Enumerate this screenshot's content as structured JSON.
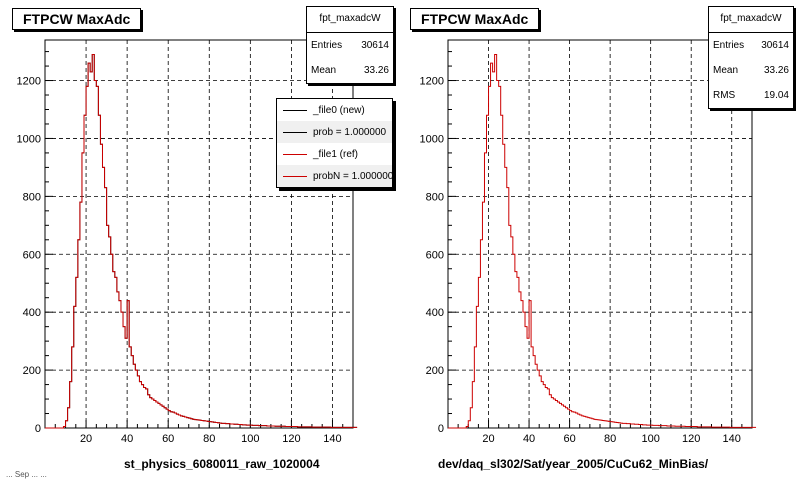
{
  "panels": [
    {
      "title": "FTPCW MaxAdc",
      "xtitle": "st_physics_6080011_raw_1020004",
      "stats": {
        "name": "fpt_maxadcW",
        "rows": [
          {
            "label": "Entries",
            "value": "30614"
          },
          {
            "label": "Mean",
            "value": "33.26"
          }
        ]
      },
      "legend": [
        {
          "label": "_file0 (new)",
          "color": "#000000"
        },
        {
          "label": "prob = 1.000000",
          "color": "#000000"
        },
        {
          "label": "_file1 (ref)",
          "color": "#cc0000"
        },
        {
          "label": "probN = 1.000000",
          "color": "#cc0000"
        }
      ]
    },
    {
      "title": "FTPCW MaxAdc",
      "xtitle": "dev/daq_sl302/Sat/year_2005/CuCu62_MinBias/",
      "stats": {
        "name": "fpt_maxadcW",
        "rows": [
          {
            "label": "Entries",
            "value": "30614"
          },
          {
            "label": "Mean",
            "value": "33.26"
          },
          {
            "label": "RMS",
            "value": "19.04"
          }
        ]
      },
      "legend": []
    }
  ],
  "footer_text": "... Sep ... ...",
  "chart_data": [
    {
      "type": "bar",
      "title": "FTPCW MaxAdc",
      "xlabel": "st_physics_6080011_raw_1020004",
      "ylabel": "",
      "xlim": [
        0,
        150
      ],
      "ylim": [
        0,
        1340
      ],
      "xticks": [
        20,
        40,
        60,
        80,
        100,
        120,
        140
      ],
      "yticks": [
        0,
        200,
        400,
        600,
        800,
        1000,
        1200
      ],
      "grid": true,
      "series": [
        {
          "name": "_file0 (new)",
          "color": "#000000"
        },
        {
          "name": "_file1 (ref)",
          "color": "#cc0000"
        }
      ],
      "bin_edges_start": 0,
      "bin_width": 1,
      "values": [
        0,
        0,
        0,
        0,
        0,
        0,
        0,
        0,
        0,
        5,
        25,
        70,
        160,
        280,
        420,
        520,
        650,
        780,
        950,
        1080,
        1180,
        1260,
        1230,
        1290,
        1200,
        1180,
        1080,
        980,
        900,
        830,
        700,
        660,
        600,
        540,
        520,
        470,
        440,
        400,
        350,
        310,
        440,
        280,
        250,
        220,
        200,
        180,
        160,
        150,
        140,
        135,
        115,
        105,
        100,
        95,
        90,
        85,
        80,
        75,
        70,
        65,
        60,
        56,
        55,
        52,
        48,
        45,
        42,
        40,
        38,
        36,
        34,
        32,
        30,
        29,
        28,
        27,
        26,
        25,
        24,
        23,
        22,
        21,
        20,
        19,
        18,
        17,
        16,
        16,
        15,
        15,
        14,
        14,
        13,
        13,
        12,
        12,
        11,
        11,
        10,
        10,
        10,
        9,
        9,
        9,
        8,
        8,
        8,
        8,
        7,
        7,
        7,
        7,
        6,
        6,
        6,
        6,
        6,
        5,
        5,
        5,
        5,
        5,
        5,
        4,
        4,
        4,
        4,
        4,
        4,
        4,
        3,
        3,
        3,
        3,
        3,
        3,
        3,
        3,
        3,
        2,
        2,
        2,
        2,
        2,
        2,
        2,
        2,
        2,
        2,
        2,
        2,
        2
      ]
    },
    {
      "type": "bar",
      "title": "FTPCW MaxAdc",
      "xlabel": "dev/daq_sl302/Sat/year_2005/CuCu62_MinBias/",
      "ylabel": "",
      "xlim": [
        0,
        150
      ],
      "ylim": [
        0,
        1340
      ],
      "xticks": [
        20,
        40,
        60,
        80,
        100,
        120,
        140
      ],
      "yticks": [
        0,
        200,
        400,
        600,
        800,
        1000,
        1200
      ],
      "grid": true,
      "series": [
        {
          "name": "fpt_maxadcW",
          "color": "#cc0000"
        }
      ],
      "bin_edges_start": 0,
      "bin_width": 1,
      "values": [
        0,
        0,
        0,
        0,
        0,
        0,
        0,
        0,
        0,
        5,
        25,
        70,
        160,
        280,
        420,
        520,
        650,
        780,
        950,
        1080,
        1180,
        1260,
        1230,
        1290,
        1200,
        1180,
        1080,
        980,
        900,
        830,
        700,
        660,
        600,
        540,
        520,
        470,
        440,
        400,
        350,
        310,
        440,
        280,
        250,
        220,
        200,
        180,
        160,
        150,
        140,
        135,
        115,
        105,
        100,
        95,
        90,
        85,
        80,
        75,
        70,
        65,
        60,
        56,
        55,
        52,
        48,
        45,
        42,
        40,
        38,
        36,
        34,
        32,
        30,
        29,
        28,
        27,
        26,
        25,
        24,
        23,
        22,
        21,
        20,
        19,
        18,
        17,
        16,
        16,
        15,
        15,
        14,
        14,
        13,
        13,
        12,
        12,
        11,
        11,
        10,
        10,
        10,
        9,
        9,
        9,
        8,
        8,
        8,
        8,
        7,
        7,
        7,
        7,
        6,
        6,
        6,
        6,
        6,
        5,
        5,
        5,
        5,
        5,
        5,
        4,
        4,
        4,
        4,
        4,
        4,
        4,
        3,
        3,
        3,
        3,
        3,
        3,
        3,
        3,
        3,
        2,
        2,
        2,
        2,
        2,
        2,
        2,
        2,
        2,
        2,
        2,
        2,
        2
      ]
    }
  ]
}
